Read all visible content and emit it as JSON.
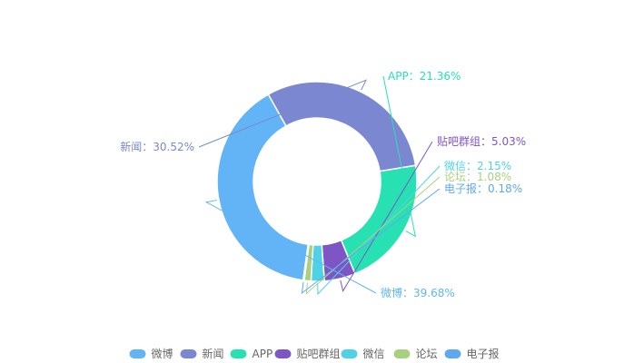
{
  "chart_data": {
    "type": "pie",
    "donut": true,
    "categories": [
      "微博",
      "新闻",
      "APP",
      "贴吧群组",
      "微信",
      "论坛",
      "电子报"
    ],
    "values": [
      39.68,
      30.52,
      21.36,
      5.03,
      2.15,
      1.08,
      0.18
    ],
    "labels": [
      "微博：39.68%",
      "新闻：30.52%",
      "APP：21.36%",
      "贴吧群组：5.03%",
      "微信：2.15%",
      "论坛：1.08%",
      "电子报：0.18%"
    ],
    "colors": [
      "#62b4f6",
      "#7b87d0",
      "#27e1b3",
      "#7e55c5",
      "#4fd2e6",
      "#a8d17e",
      "#5ea8f1"
    ],
    "legend": {
      "position": "bottom",
      "items": [
        "微博",
        "新闻",
        "APP",
        "贴吧群组",
        "微信",
        "论坛",
        "电子报"
      ]
    },
    "order": "clockwise-from-bottom-right"
  }
}
